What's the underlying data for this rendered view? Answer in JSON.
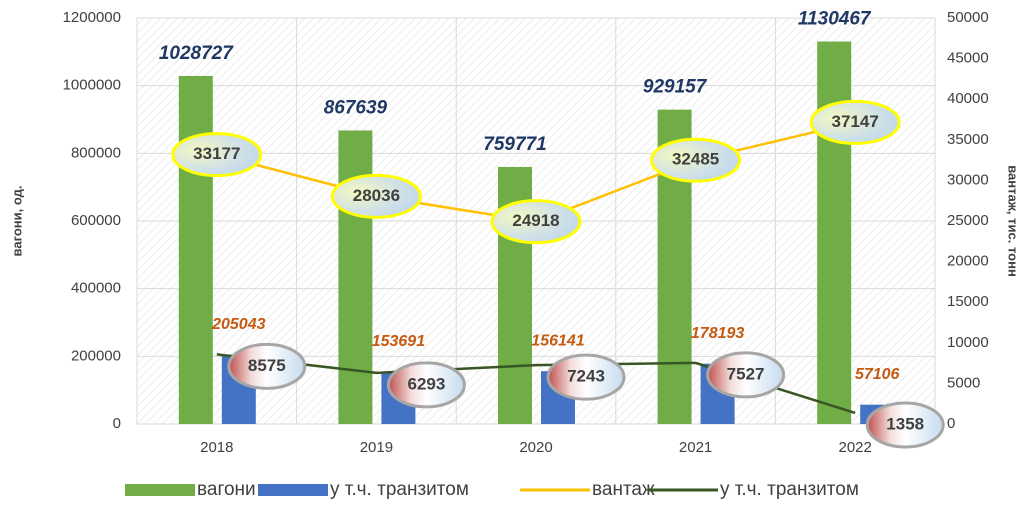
{
  "chart_data": {
    "type": "bar",
    "categories": [
      "2018",
      "2019",
      "2020",
      "2021",
      "2022"
    ],
    "y_label": "вагони, од.",
    "y2_label": "вантаж, тис. тонн",
    "ylim": [
      0,
      1200000
    ],
    "yticks": [
      0,
      200000,
      400000,
      600000,
      800000,
      1000000,
      1200000
    ],
    "y2lim": [
      0,
      50000
    ],
    "y2ticks": [
      0,
      5000,
      10000,
      15000,
      20000,
      25000,
      30000,
      35000,
      40000,
      45000,
      50000
    ],
    "grid": true,
    "legend": "bottom",
    "series": [
      {
        "name": "вагони",
        "type": "bar",
        "color": "#70ad47",
        "values": [
          1028727,
          867639,
          759771,
          929157,
          1130467
        ]
      },
      {
        "name": "у т.ч. транзитом",
        "type": "bar",
        "color": "#4472c4",
        "values": [
          205043,
          153691,
          156141,
          178193,
          57106
        ]
      },
      {
        "name": "вантаж",
        "type": "line",
        "axis": "y2",
        "color": "#ffc000",
        "values": [
          33177,
          28036,
          24918,
          32485,
          37147
        ]
      },
      {
        "name": "у т.ч. транзитом",
        "type": "line",
        "axis": "y2",
        "color": "#375623",
        "values": [
          8575,
          6293,
          7243,
          7527,
          1358
        ]
      }
    ]
  }
}
